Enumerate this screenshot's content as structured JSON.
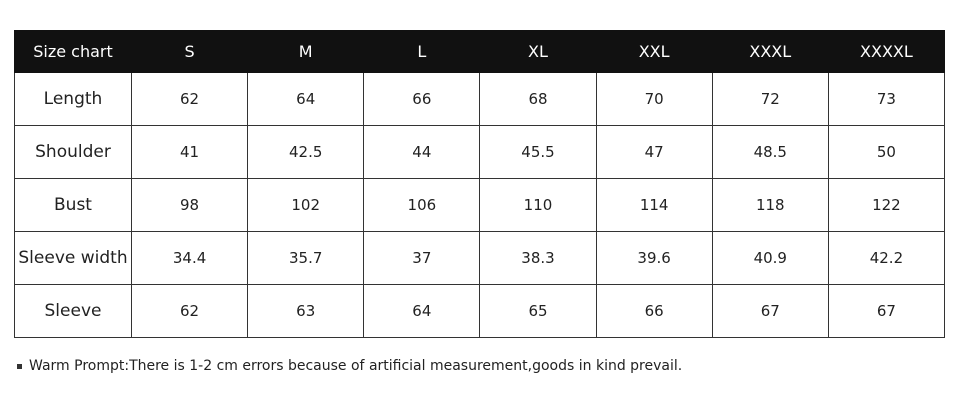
{
  "table": {
    "header": [
      "Size chart",
      "S",
      "M",
      "L",
      "XL",
      "XXL",
      "XXXL",
      "XXXXL"
    ],
    "rows": [
      [
        "Length",
        "62",
        "64",
        "66",
        "68",
        "70",
        "72",
        "73"
      ],
      [
        "Shoulder",
        "41",
        "42.5",
        "44",
        "45.5",
        "47",
        "48.5",
        "50"
      ],
      [
        "Bust",
        "98",
        "102",
        "106",
        "110",
        "114",
        "118",
        "122"
      ],
      [
        "Sleeve width",
        "34.4",
        "35.7",
        "37",
        "38.3",
        "39.6",
        "40.9",
        "42.2"
      ],
      [
        "Sleeve",
        "62",
        "63",
        "64",
        "65",
        "66",
        "67",
        "67"
      ]
    ]
  },
  "note": "Warm Prompt:There is 1-2 cm errors because of artificial measurement,goods in kind prevail."
}
